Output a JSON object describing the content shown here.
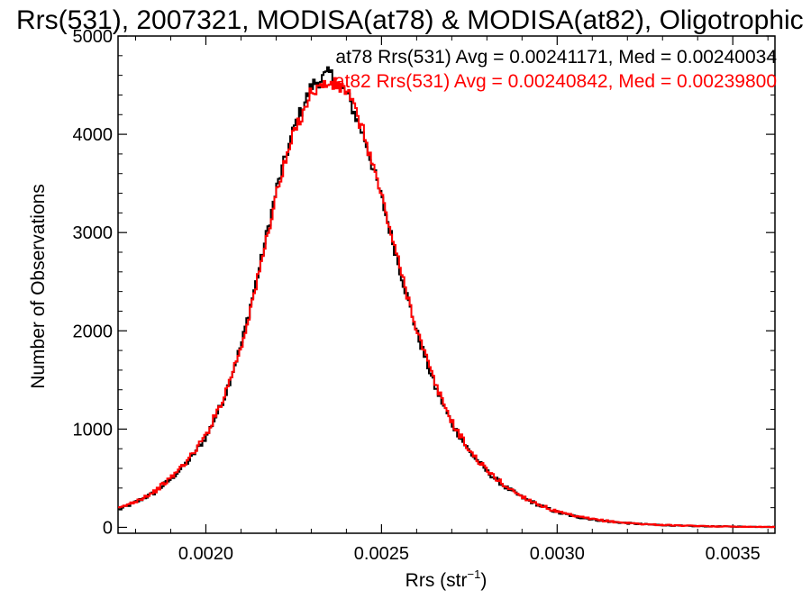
{
  "chart_data": {
    "type": "line",
    "title": "Rrs(531), 2007321, MODISA(at78) & MODISA(at82), Oligotrophic",
    "xlabel": "Rrs (str",
    "xlabel_sup": "−1",
    "xlabel_close": ")",
    "ylabel": "Number of Observations",
    "xlim": [
      0.00175,
      0.00362
    ],
    "ylim": [
      -60,
      5000
    ],
    "xticks": [
      0.002,
      0.0025,
      0.003,
      0.0035
    ],
    "xtick_labels": [
      "0.0020",
      "0.0025",
      "0.0030",
      "0.0035"
    ],
    "yticks": [
      0,
      1000,
      2000,
      3000,
      4000,
      5000
    ],
    "ytick_labels": [
      "0",
      "1000",
      "2000",
      "3000",
      "4000",
      "5000"
    ],
    "grid": false,
    "legend_placement": "top-right",
    "series": [
      {
        "name": "at78",
        "annotation": "at78 Rrs(531) Avg = 0.00241171, Med = 0.00240034",
        "color": "#000000",
        "x": [
          0.00175,
          0.0018,
          0.00185,
          0.0019,
          0.00195,
          0.002,
          0.00205,
          0.0021,
          0.00215,
          0.0022,
          0.00225,
          0.0023,
          0.00235,
          0.0024,
          0.00245,
          0.0025,
          0.00255,
          0.0026,
          0.00265,
          0.0027,
          0.00275,
          0.0028,
          0.00285,
          0.0029,
          0.00295,
          0.003,
          0.00305,
          0.0031,
          0.00315,
          0.0032,
          0.00325,
          0.0033,
          0.00335,
          0.0034,
          0.00345,
          0.0035,
          0.00355,
          0.00362
        ],
        "y": [
          180,
          260,
          350,
          500,
          680,
          930,
          1320,
          1880,
          2640,
          3460,
          4080,
          4500,
          4620,
          4400,
          3950,
          3320,
          2620,
          1960,
          1430,
          1040,
          760,
          560,
          410,
          300,
          220,
          150,
          110,
          80,
          58,
          42,
          30,
          22,
          16,
          12,
          10,
          8,
          6,
          4
        ]
      },
      {
        "name": "at82",
        "annotation": "at82 Rrs(531) Avg = 0.00240842, Med = 0.00239800",
        "color": "#ff0000",
        "x": [
          0.00175,
          0.0018,
          0.00185,
          0.0019,
          0.00195,
          0.002,
          0.00205,
          0.0021,
          0.00215,
          0.0022,
          0.00225,
          0.0023,
          0.00235,
          0.0024,
          0.00245,
          0.0025,
          0.00255,
          0.0026,
          0.00265,
          0.0027,
          0.00275,
          0.0028,
          0.00285,
          0.0029,
          0.00295,
          0.003,
          0.00305,
          0.0031,
          0.00315,
          0.0032,
          0.00325,
          0.0033,
          0.00335,
          0.0034,
          0.00345,
          0.0035,
          0.00355,
          0.00362
        ],
        "y": [
          190,
          270,
          360,
          510,
          700,
          950,
          1340,
          1860,
          2600,
          3420,
          4030,
          4450,
          4520,
          4450,
          3980,
          3340,
          2640,
          1990,
          1460,
          1060,
          770,
          570,
          420,
          310,
          225,
          155,
          112,
          82,
          60,
          44,
          32,
          24,
          18,
          13,
          10,
          8,
          6,
          4
        ]
      }
    ]
  }
}
